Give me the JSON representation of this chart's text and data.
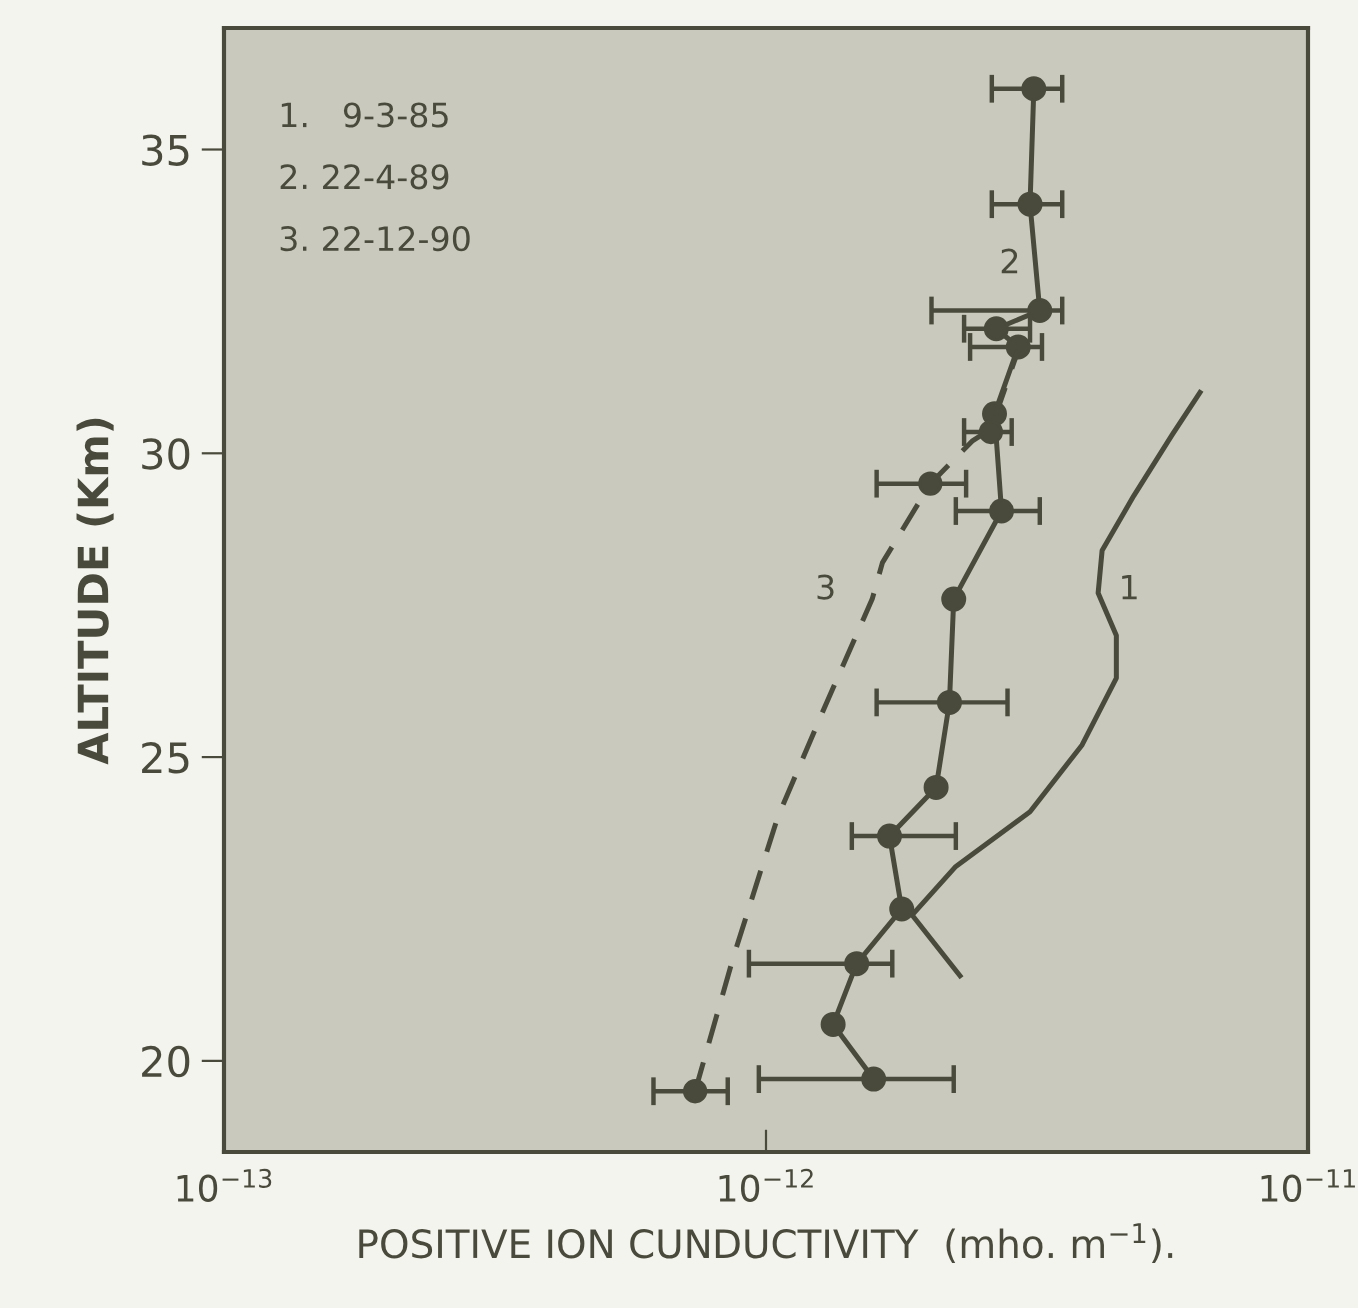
{
  "chart_data": {
    "type": "line",
    "xlabel": "POSITIVE ION CUNDUCTIVITY  (mho. m$^{−1}$).",
    "ylabel": "ALTITUDE (Km)",
    "log": "x",
    "xlim": [
      1e-13,
      1e-11
    ],
    "xticks": [
      {
        "value": 1e-13,
        "label": "10$^{−13}$"
      },
      {
        "value": 1e-12,
        "label": "10$^{−12}$"
      },
      {
        "value": 1e-11,
        "label": "10$^{−11}$"
      }
    ],
    "ylim": [
      18.5,
      37.0
    ],
    "yticks": [
      20,
      25,
      30,
      35
    ],
    "grid": false,
    "series": [
      {
        "color": "#4a4a3c",
        "marker": "none",
        "line_style": "solid",
        "values": [
          21.4,
          22.4,
          23.2,
          24.1,
          25.2,
          26.3,
          27.0,
          27.7,
          28.4,
          29.3,
          30.3,
          31.0
        ],
        "x": [
          2.28e-12,
          1.86e-12,
          2.24e-12,
          3.07e-12,
          3.83e-12,
          4.43e-12,
          4.43e-12,
          4.1e-12,
          4.17e-12,
          4.77e-12,
          5.61e-12,
          6.32e-12
        ]
      },
      {
        "color": "#4a4a3c",
        "marker": "circle",
        "line_style": "solid",
        "values": [
          19.7,
          20.6,
          21.6,
          22.5,
          23.7,
          24.5,
          25.9,
          27.6,
          29.05,
          30.65,
          31.75,
          32.05,
          32.35,
          34.1,
          36.0
        ],
        "x": [
          1.58e-12,
          1.33e-12,
          1.47e-12,
          1.78e-12,
          1.69e-12,
          2.06e-12,
          2.18e-12,
          2.22e-12,
          2.72e-12,
          2.64e-12,
          2.92e-12,
          2.66e-12,
          3.2e-12,
          3.07e-12,
          3.12e-12
        ],
        "xerrors": [
          [
            9.7e-13,
            2.22e-12
          ],
          null,
          [
            9.3e-13,
            1.71e-12
          ],
          null,
          [
            1.44e-12,
            2.24e-12
          ],
          null,
          [
            1.6e-12,
            2.79e-12
          ],
          null,
          [
            2.24e-12,
            3.2e-12
          ],
          null,
          [
            2.38e-12,
            3.23e-12
          ],
          [
            2.32e-12,
            3.07e-12
          ],
          [
            2.02e-12,
            3.52e-12
          ],
          [
            2.61e-12,
            3.52e-12
          ],
          [
            2.61e-12,
            3.52e-12
          ]
        ]
      },
      {
        "color": "#4a4a3c",
        "marker": "none",
        "line_style": "dashed",
        "values": [
          19.5,
          21.7,
          24.0,
          25.8,
          27.6,
          28.2,
          29.5,
          30.2,
          30.4,
          31.7
        ],
        "x": [
          7.4e-13,
          8.7e-13,
          1.05e-12,
          1.28e-12,
          1.57e-12,
          1.64e-12,
          2.01e-12,
          2.4e-12,
          2.6e-12,
          2.92e-12
        ]
      },
      {
        "type": "scatter",
        "color": "#4a4a3c",
        "marker": "circle",
        "values": [
          19.5,
          29.5,
          30.35
        ],
        "x": [
          7.4e-13,
          2.01e-12,
          2.6e-12
        ],
        "xerrors": [
          [
            6.2e-13,
            8.5e-13
          ],
          [
            1.6e-12,
            2.34e-12
          ],
          [
            2.32e-12,
            2.84e-12
          ]
        ]
      }
    ],
    "annotations": [
      "1.   9-3-85",
      "2. 22-4-89",
      "3. 22-12-90",
      "1",
      "2",
      "3"
    ]
  }
}
